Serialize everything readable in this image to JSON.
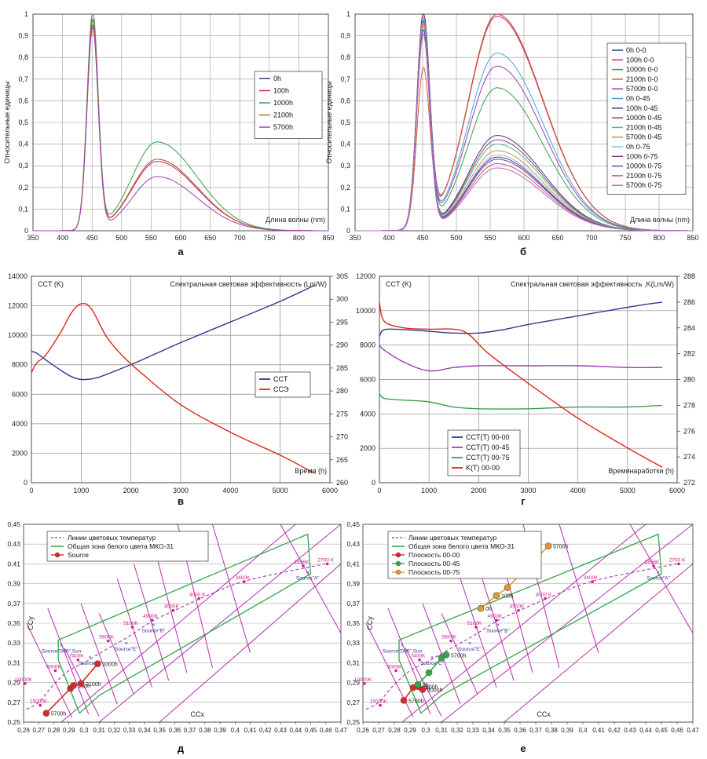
{
  "chart_data": [
    {
      "id": "a",
      "type": "line",
      "caption": "а",
      "xlabel": "Длина волны (nm)",
      "ylabel": "Относительные единицы",
      "xlim": [
        350,
        850
      ],
      "ylim": [
        0,
        1
      ],
      "xticks": [
        350,
        400,
        450,
        500,
        550,
        600,
        650,
        700,
        750,
        800,
        850
      ],
      "yticks": [
        0,
        0.1,
        0.2,
        0.3,
        0.4,
        0.5,
        0.6,
        0.7,
        0.8,
        0.9,
        1
      ],
      "ytick_labels": [
        "0",
        "0,1",
        "0,2",
        "0,3",
        "0,4",
        "0,5",
        "0,6",
        "0,7",
        "0,8",
        "0,9",
        "1"
      ],
      "series": [
        {
          "name": "0h",
          "color": "#2e3a8c",
          "peak": 0.94,
          "broad": 0.33
        },
        {
          "name": "100h",
          "color": "#d6206f",
          "peak": 0.97,
          "broad": 0.32
        },
        {
          "name": "1000h",
          "color": "#3aa14a",
          "peak": 1.0,
          "broad": 0.41
        },
        {
          "name": "2100h",
          "color": "#c8612a",
          "peak": 0.96,
          "broad": 0.33
        },
        {
          "name": "5700h",
          "color": "#9b3fb5",
          "peak": 0.93,
          "broad": 0.25
        }
      ]
    },
    {
      "id": "b",
      "type": "line",
      "caption": "б",
      "xlabel": "Длина волны (nm)",
      "ylabel": "Относительные единицы",
      "xlim": [
        350,
        850
      ],
      "ylim": [
        0,
        1
      ],
      "xticks": [
        350,
        400,
        450,
        500,
        550,
        600,
        650,
        700,
        750,
        800,
        850
      ],
      "yticks": [
        0,
        0.1,
        0.2,
        0.3,
        0.4,
        0.5,
        0.6,
        0.7,
        0.8,
        0.9,
        1
      ],
      "ytick_labels": [
        "0",
        "0,1",
        "0,2",
        "0,3",
        "0,4",
        "0,5",
        "0,6",
        "0,7",
        "0,8",
        "0,9",
        "1"
      ],
      "series": [
        {
          "name": "0h 0-0",
          "color": "#2e3a8c",
          "peak": 0.98,
          "broad": 1.0
        },
        {
          "name": "100h 0-0",
          "color": "#d6206f",
          "peak": 0.97,
          "broad": 0.99
        },
        {
          "name": "1000h 0-0",
          "color": "#3aa14a",
          "peak": 0.95,
          "broad": 0.66
        },
        {
          "name": "2100h 0-0",
          "color": "#c8612a",
          "peak": 0.72,
          "broad": 1.0
        },
        {
          "name": "5700h 0-0",
          "color": "#9b3fb5",
          "peak": 0.95,
          "broad": 0.76
        },
        {
          "name": "0h 0-45",
          "color": "#4aa3d8",
          "peak": 0.96,
          "broad": 0.82
        },
        {
          "name": "100h 0-45",
          "color": "#3d3d8f",
          "peak": 0.95,
          "broad": 0.44
        },
        {
          "name": "1000h 0-45",
          "color": "#a14070",
          "peak": 0.94,
          "broad": 0.42
        },
        {
          "name": "2100h 0-45",
          "color": "#49b893",
          "peak": 0.93,
          "broad": 0.4
        },
        {
          "name": "5700h 0-45",
          "color": "#d68a4e",
          "peak": 0.95,
          "broad": 0.37
        },
        {
          "name": "0h 0-75",
          "color": "#7fc9e0",
          "peak": 0.93,
          "broad": 0.35
        },
        {
          "name": "100h 0-75",
          "color": "#8a2a87",
          "peak": 0.92,
          "broad": 0.34
        },
        {
          "name": "1000h 0-75",
          "color": "#4c4cb0",
          "peak": 0.92,
          "broad": 0.33
        },
        {
          "name": "2100h 0-75",
          "color": "#d0527b",
          "peak": 0.9,
          "broad": 0.31
        },
        {
          "name": "5700h 0-75",
          "color": "#b46bc9",
          "peak": 0.9,
          "broad": 0.29
        }
      ]
    },
    {
      "id": "v",
      "type": "line",
      "caption": "в",
      "xlabel": "Время (h)",
      "ylabel": "CCT (K)",
      "y2label": "Спектральная световая эффективность (Lm/W)",
      "xlim": [
        0,
        6000
      ],
      "ylim": [
        0,
        14000
      ],
      "y2lim": [
        260,
        305
      ],
      "xticks": [
        0,
        1000,
        2000,
        3000,
        4000,
        5000,
        6000
      ],
      "yticks": [
        0,
        2000,
        4000,
        6000,
        8000,
        10000,
        12000,
        14000
      ],
      "y2ticks": [
        260,
        265,
        270,
        275,
        280,
        285,
        290,
        295,
        300,
        305
      ],
      "series": [
        {
          "name": "CCT",
          "color": "#2e3a8c",
          "axis": "left",
          "x": [
            0,
            100,
            300,
            600,
            800,
            1000,
            1300,
            1700,
            2200,
            3000,
            4000,
            5000,
            5700
          ],
          "y": [
            8900,
            8800,
            8300,
            7600,
            7200,
            7000,
            7100,
            7600,
            8300,
            9500,
            10900,
            12300,
            13400
          ]
        },
        {
          "name": "CCЭ",
          "color": "#e0261f",
          "axis": "right",
          "x": [
            0,
            100,
            300,
            600,
            800,
            1000,
            1200,
            1500,
            1800,
            2200,
            3000,
            4000,
            5000,
            5700
          ],
          "y": [
            284,
            286,
            288,
            293,
            297,
            299,
            298,
            292,
            288,
            284,
            277,
            271,
            266,
            262
          ]
        }
      ]
    },
    {
      "id": "g",
      "type": "line",
      "caption": "г",
      "xlabel": "Времянаработки (h)",
      "ylabel": "CCT (K)",
      "y2label": "Спектральная световая эффективность ,K(Lm/W)",
      "xlim": [
        0,
        6000
      ],
      "ylim": [
        0,
        12000
      ],
      "y2lim": [
        272,
        288
      ],
      "xticks": [
        0,
        1000,
        2000,
        3000,
        4000,
        5000,
        6000
      ],
      "yticks": [
        0,
        2000,
        4000,
        6000,
        8000,
        10000,
        12000
      ],
      "y2ticks": [
        272,
        274,
        276,
        278,
        280,
        282,
        284,
        286,
        288
      ],
      "series": [
        {
          "name": "CCT(T) 00-00",
          "color": "#2e3a8c",
          "axis": "left",
          "x": [
            0,
            100,
            500,
            1000,
            1500,
            2000,
            2500,
            3000,
            4000,
            5000,
            5700
          ],
          "y": [
            8500,
            8900,
            8900,
            8800,
            8700,
            8700,
            8900,
            9200,
            9700,
            10200,
            10500
          ]
        },
        {
          "name": "CCT(T) 00-45",
          "color": "#9b3fb5",
          "axis": "left",
          "x": [
            0,
            100,
            500,
            1000,
            1500,
            2000,
            3000,
            4000,
            5000,
            5700
          ],
          "y": [
            8000,
            7700,
            7000,
            6500,
            6700,
            6800,
            6800,
            6800,
            6700,
            6700
          ]
        },
        {
          "name": "CCT(T) 00-75",
          "color": "#3aa14a",
          "axis": "left",
          "x": [
            0,
            100,
            500,
            1000,
            1500,
            2000,
            3000,
            4000,
            5000,
            5700
          ],
          "y": [
            5200,
            4900,
            4800,
            4700,
            4400,
            4300,
            4300,
            4400,
            4400,
            4500
          ]
        },
        {
          "name": "K(T) 00-00",
          "color": "#e0261f",
          "axis": "right",
          "x": [
            0,
            100,
            500,
            1000,
            1500,
            1800,
            2200,
            3000,
            4000,
            5000,
            5700
          ],
          "y": [
            286,
            284.5,
            284,
            283.9,
            283.9,
            283.5,
            282,
            279.7,
            277,
            274.7,
            273.2
          ]
        }
      ]
    },
    {
      "id": "d",
      "type": "scatter",
      "caption": "д",
      "xlabel": "CCx",
      "ylabel": "CCy",
      "xlim": [
        0.26,
        0.47
      ],
      "ylim": [
        0.25,
        0.45
      ],
      "xticks": [
        0.26,
        0.27,
        0.28,
        0.29,
        0.3,
        0.31,
        0.32,
        0.33,
        0.34,
        0.35,
        0.36,
        0.37,
        0.38,
        0.39,
        0.4,
        0.41,
        0.42,
        0.43,
        0.44,
        0.45,
        0.46,
        0.47
      ],
      "xtick_labels": [
        "0,26",
        "0,27",
        "0,28",
        "0,29",
        "0,3",
        "0,31",
        "0,32",
        "0,33",
        "0,34",
        "0,35",
        "0,36",
        "0,37",
        "0,38",
        "0,39",
        "0,4",
        "0,41",
        "0,42",
        "0,43",
        "0,44",
        "0,45",
        "0,46",
        "0,47"
      ],
      "yticks": [
        0.25,
        0.27,
        0.29,
        0.31,
        0.33,
        0.35,
        0.37,
        0.39,
        0.41,
        0.43,
        0.45
      ],
      "ytick_labels": [
        "0,25",
        "0,27",
        "0,29",
        "0,31",
        "0,33",
        "0,35",
        "0,37",
        "0,39",
        "0,41",
        "0,43",
        "0,45"
      ],
      "legend": [
        "Линии цветовых температур",
        "Общая зона белого цвета МКО-31",
        "Source"
      ],
      "series": [
        {
          "name": "Source",
          "color": "#e0261f",
          "points": [
            [
              0.275,
              0.259,
              "5700h"
            ],
            [
              0.291,
              0.284,
              ""
            ],
            [
              0.293,
              0.287,
              "100h"
            ],
            [
              0.298,
              0.289,
              "2100h"
            ],
            [
              0.309,
              0.309,
              "1000h"
            ]
          ]
        }
      ],
      "cct_labels": [
        [
          "15000K",
          0.271,
          0.267
        ],
        [
          "10000K",
          0.261,
          0.289
        ],
        [
          "9000K",
          0.281,
          0.302
        ],
        [
          "7400K",
          0.296,
          0.313
        ],
        [
          "5600K",
          0.316,
          0.332
        ],
        [
          "5100K",
          0.332,
          0.346
        ],
        [
          "4900K",
          0.345,
          0.353
        ],
        [
          "4500K",
          0.359,
          0.363
        ],
        [
          "4000 K",
          0.376,
          0.375
        ],
        [
          "3400K",
          0.406,
          0.392
        ],
        [
          "2856K",
          0.445,
          0.408
        ],
        [
          "2700 K",
          0.461,
          0.41
        ]
      ],
      "source_labels": [
        [
          "Source\"D65\",Sun",
          0.285,
          0.328
        ],
        [
          "Source\"C\"",
          0.304,
          0.316
        ],
        [
          "Source\"E\"",
          0.328,
          0.33
        ],
        [
          "Source\"B\"",
          0.346,
          0.349
        ],
        [
          "Source\"A\"",
          0.448,
          0.402
        ]
      ]
    },
    {
      "id": "e",
      "type": "scatter",
      "caption": "е",
      "xlabel": "CCx",
      "ylabel": "CCy",
      "xlim": [
        0.26,
        0.47
      ],
      "ylim": [
        0.25,
        0.45
      ],
      "xticks": [
        0.26,
        0.27,
        0.28,
        0.29,
        0.3,
        0.31,
        0.32,
        0.33,
        0.34,
        0.35,
        0.36,
        0.37,
        0.38,
        0.39,
        0.4,
        0.41,
        0.42,
        0.43,
        0.44,
        0.45,
        0.46,
        0.47
      ],
      "xtick_labels": [
        "0,26",
        "0,27",
        "0,28",
        "0,29",
        "0,3",
        "0,31",
        "0,32",
        "0,33",
        "0,34",
        "0,35",
        "0,36",
        "0,37",
        "0,38",
        "0,39",
        "0,4",
        "0,41",
        "0,42",
        "0,43",
        "0,44",
        "0,45",
        "0,46",
        "0,47"
      ],
      "yticks": [
        0.25,
        0.27,
        0.29,
        0.31,
        0.33,
        0.35,
        0.37,
        0.39,
        0.41,
        0.43,
        0.45
      ],
      "ytick_labels": [
        "0,25",
        "0,27",
        "0,29",
        "0,31",
        "0,33",
        "0,35",
        "0,37",
        "0,39",
        "0,41",
        "0,43",
        "0,45"
      ],
      "legend": [
        "Линии цветовых температур",
        "Общая зона белого цвета МКО-31",
        "Плоскость 00-00",
        "Плоскость 00-45",
        "Плоскость 00-75"
      ],
      "series": [
        {
          "name": "Плоскость 00-00",
          "color": "#e0261f",
          "points": [
            [
              0.286,
              0.272,
              "5700h"
            ],
            [
              0.292,
              0.285,
              "100h"
            ],
            [
              0.295,
              0.286,
              "2100h"
            ],
            [
              0.298,
              0.283,
              "1000h"
            ]
          ]
        },
        {
          "name": "Плоскость 00-45",
          "color": "#2fa84a",
          "points": [
            [
              0.295,
              0.288,
              "0h"
            ],
            [
              0.302,
              0.3,
              ""
            ],
            [
              0.31,
              0.315,
              ""
            ],
            [
              0.313,
              0.318,
              "5700h"
            ]
          ]
        },
        {
          "name": "Плоскость 00-75",
          "color": "#e8962b",
          "points": [
            [
              0.335,
              0.365,
              "0h"
            ],
            [
              0.345,
              0.378,
              "100h"
            ],
            [
              0.352,
              0.386,
              ""
            ],
            [
              0.378,
              0.428,
              "5700h"
            ]
          ]
        }
      ],
      "cct_labels": [
        [
          "15000K",
          0.271,
          0.267
        ],
        [
          "10000K",
          0.261,
          0.289
        ],
        [
          "9000K",
          0.281,
          0.302
        ],
        [
          "7400K",
          0.296,
          0.313
        ],
        [
          "5600K",
          0.316,
          0.332
        ],
        [
          "5100K",
          0.332,
          0.346
        ],
        [
          "4900K",
          0.345,
          0.353
        ],
        [
          "4500K",
          0.359,
          0.363
        ],
        [
          "4000 K",
          0.376,
          0.375
        ],
        [
          "3400K",
          0.406,
          0.392
        ],
        [
          "2856K",
          0.445,
          0.408
        ],
        [
          "2700 K",
          0.461,
          0.41
        ]
      ],
      "source_labels": [
        [
          "Source\"D65\",Sun",
          0.285,
          0.328
        ],
        [
          "Source\"C\"",
          0.304,
          0.316
        ],
        [
          "Source\"E\"",
          0.328,
          0.33
        ],
        [
          "Source\"B\"",
          0.346,
          0.349
        ],
        [
          "Source\"A\"",
          0.448,
          0.402
        ]
      ]
    }
  ]
}
